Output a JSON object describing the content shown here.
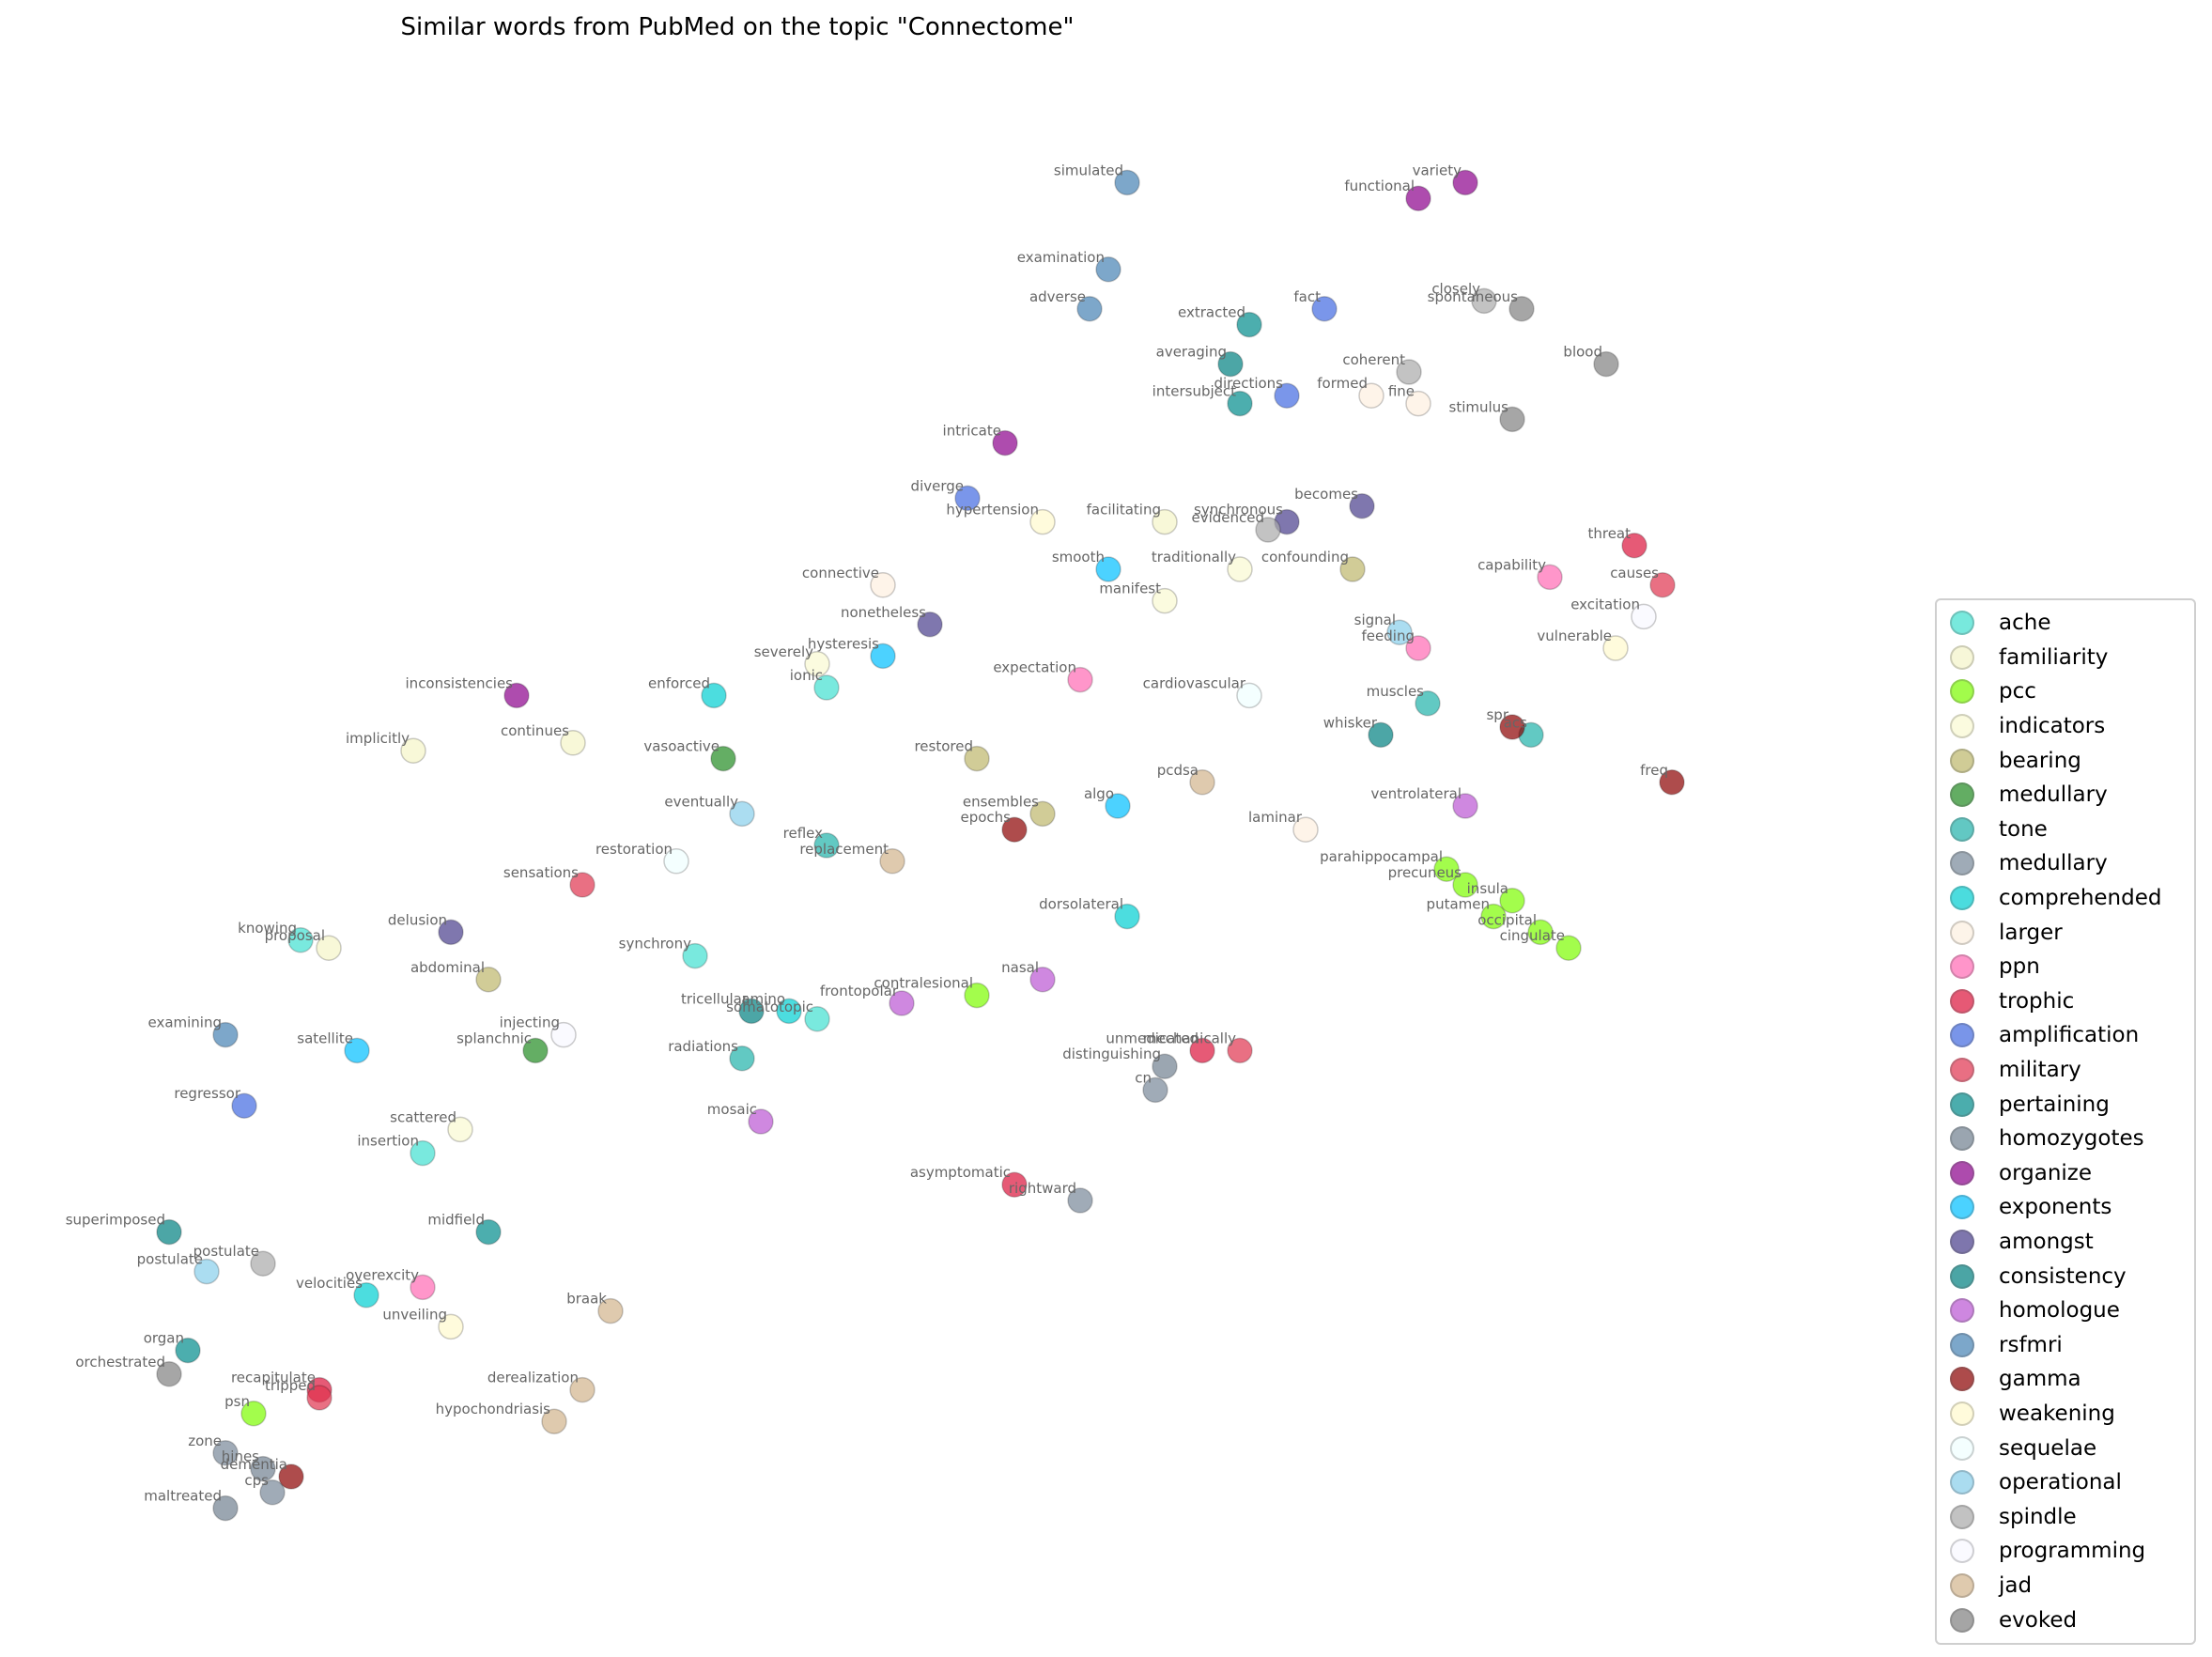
{
  "chart_data": {
    "type": "scatter",
    "title": "Similar words from PubMed on the topic \"Connectome\"",
    "xlabel": "",
    "ylabel": "",
    "axes_visible": false,
    "xlim": [
      0,
      100
    ],
    "ylim": [
      0,
      100
    ],
    "legend_position": "right",
    "series": [
      {
        "name": "ache",
        "color": "#40e0d0",
        "points": [
          {
            "x": 35.0,
            "y": 43.0,
            "label": "synchrony"
          },
          {
            "x": 20.5,
            "y": 30.5,
            "label": "insertion"
          },
          {
            "x": 41.5,
            "y": 39.0,
            "label": "somatotopic"
          },
          {
            "x": 14.0,
            "y": 44.0,
            "label": "knowing"
          },
          {
            "x": 42.0,
            "y": 60.0,
            "label": "ionic"
          }
        ]
      },
      {
        "name": "familiarity",
        "color": "#f5f5c8",
        "points": [
          {
            "x": 20.0,
            "y": 56.0,
            "label": "implicitly"
          },
          {
            "x": 15.5,
            "y": 43.5,
            "label": "proposal"
          },
          {
            "x": 60.0,
            "y": 70.5,
            "label": "facilitating"
          },
          {
            "x": 28.5,
            "y": 56.5,
            "label": "continues"
          }
        ]
      },
      {
        "name": "pcc",
        "color": "#7cfc00",
        "points": [
          {
            "x": 76.0,
            "y": 47.5,
            "label": "precuneus"
          },
          {
            "x": 78.5,
            "y": 46.5,
            "label": "insula"
          },
          {
            "x": 81.5,
            "y": 43.5,
            "label": "cingulate"
          },
          {
            "x": 80.0,
            "y": 44.5,
            "label": "occipital"
          },
          {
            "x": 77.5,
            "y": 45.5,
            "label": "putamen"
          },
          {
            "x": 75.0,
            "y": 48.5,
            "label": "parahippocampal"
          },
          {
            "x": 50.0,
            "y": 40.5,
            "label": "contralesional"
          },
          {
            "x": 11.5,
            "y": 14.0,
            "label": "psn"
          }
        ]
      },
      {
        "name": "indicators",
        "color": "#fafad2",
        "points": [
          {
            "x": 60.0,
            "y": 65.5,
            "label": "manifest"
          },
          {
            "x": 64.0,
            "y": 67.5,
            "label": "traditionally"
          },
          {
            "x": 41.5,
            "y": 61.5,
            "label": "severely"
          },
          {
            "x": 22.5,
            "y": 32.0,
            "label": "scattered"
          }
        ]
      },
      {
        "name": "bearing",
        "color": "#bdb76b",
        "points": [
          {
            "x": 70.0,
            "y": 67.5,
            "label": "confounding"
          },
          {
            "x": 53.5,
            "y": 52.0,
            "label": "ensembles"
          },
          {
            "x": 50.0,
            "y": 55.5,
            "label": "restored"
          },
          {
            "x": 24.0,
            "y": 41.5,
            "label": "abdominal"
          }
        ]
      },
      {
        "name": "medullary",
        "color": "#228b22",
        "points": [
          {
            "x": 26.5,
            "y": 37.0,
            "label": "splanchnic"
          },
          {
            "x": 36.5,
            "y": 55.5,
            "label": "vasoactive"
          }
        ]
      },
      {
        "name": "tone",
        "color": "#20b2aa",
        "points": [
          {
            "x": 79.5,
            "y": 57.0,
            "label": "acs"
          },
          {
            "x": 74.0,
            "y": 59.0,
            "label": "muscles"
          },
          {
            "x": 42.0,
            "y": 50.0,
            "label": "reflex"
          },
          {
            "x": 37.5,
            "y": 36.5,
            "label": "radiations"
          }
        ]
      },
      {
        "name": "medullary",
        "color": "#778899",
        "points": [
          {
            "x": 59.5,
            "y": 34.5,
            "label": "cn"
          },
          {
            "x": 55.5,
            "y": 27.5,
            "label": "rightward"
          },
          {
            "x": 10.0,
            "y": 11.5,
            "label": "zone"
          },
          {
            "x": 12.5,
            "y": 9.0,
            "label": "cps"
          }
        ]
      },
      {
        "name": "comprehended",
        "color": "#00ced1",
        "points": [
          {
            "x": 36.0,
            "y": 59.5,
            "label": "enforced"
          },
          {
            "x": 40.0,
            "y": 39.5,
            "label": "amino"
          },
          {
            "x": 58.0,
            "y": 45.5,
            "label": "dorsolateral"
          },
          {
            "x": 17.5,
            "y": 21.5,
            "label": "velocities"
          }
        ]
      },
      {
        "name": "larger",
        "color": "#fdf0e0",
        "points": [
          {
            "x": 71.0,
            "y": 78.5,
            "label": "formed"
          },
          {
            "x": 73.5,
            "y": 78.0,
            "label": "fine"
          },
          {
            "x": 45.0,
            "y": 66.5,
            "label": "connective"
          },
          {
            "x": 67.5,
            "y": 51.0,
            "label": "laminar"
          }
        ]
      },
      {
        "name": "ppn",
        "color": "#ff69b4",
        "points": [
          {
            "x": 55.5,
            "y": 60.5,
            "label": "expectation"
          },
          {
            "x": 80.5,
            "y": 67.0,
            "label": "capability"
          },
          {
            "x": 73.5,
            "y": 62.5,
            "label": "feeding"
          },
          {
            "x": 20.5,
            "y": 22.0,
            "label": "overexcity"
          }
        ]
      },
      {
        "name": "trophic",
        "color": "#dc143c",
        "points": [
          {
            "x": 62.0,
            "y": 37.0,
            "label": "unmedicated"
          },
          {
            "x": 52.0,
            "y": 28.5,
            "label": "asymptomatic"
          },
          {
            "x": 85.0,
            "y": 69.0,
            "label": "threat"
          },
          {
            "x": 15.0,
            "y": 15.5,
            "label": "recapitulate"
          }
        ]
      },
      {
        "name": "amplification",
        "color": "#4169e1",
        "points": [
          {
            "x": 68.5,
            "y": 84.0,
            "label": "fact"
          },
          {
            "x": 66.5,
            "y": 78.5,
            "label": "directions"
          },
          {
            "x": 49.5,
            "y": 72.0,
            "label": "diverge"
          },
          {
            "x": 11.0,
            "y": 33.5,
            "label": "regressor"
          }
        ]
      },
      {
        "name": "military",
        "color": "#e0334f",
        "points": [
          {
            "x": 86.5,
            "y": 66.5,
            "label": "causes"
          },
          {
            "x": 29.0,
            "y": 47.5,
            "label": "sensations"
          },
          {
            "x": 64.0,
            "y": 37.0,
            "label": "mechanically"
          },
          {
            "x": 15.0,
            "y": 15.0,
            "label": "tripped"
          }
        ]
      },
      {
        "name": "pertaining",
        "color": "#008b8b",
        "points": [
          {
            "x": 64.5,
            "y": 83.0,
            "label": "extracted"
          },
          {
            "x": 64.0,
            "y": 78.0,
            "label": "intersubject"
          },
          {
            "x": 24.0,
            "y": 25.5,
            "label": "midfield"
          },
          {
            "x": 8.0,
            "y": 18.0,
            "label": "organ"
          }
        ]
      },
      {
        "name": "homozygotes",
        "color": "#708090",
        "points": [
          {
            "x": 60.0,
            "y": 36.0,
            "label": "distinguishing"
          },
          {
            "x": 10.0,
            "y": 8.0,
            "label": "maltreated"
          },
          {
            "x": 12.0,
            "y": 10.5,
            "label": "hines"
          }
        ]
      },
      {
        "name": "organize",
        "color": "#8b008b",
        "points": [
          {
            "x": 76.0,
            "y": 92.0,
            "label": "variety"
          },
          {
            "x": 73.5,
            "y": 91.0,
            "label": "functional"
          },
          {
            "x": 51.5,
            "y": 75.5,
            "label": "intricate"
          },
          {
            "x": 25.5,
            "y": 59.5,
            "label": "inconsistencies"
          }
        ]
      },
      {
        "name": "exponents",
        "color": "#00bfff",
        "points": [
          {
            "x": 57.0,
            "y": 67.5,
            "label": "smooth"
          },
          {
            "x": 45.0,
            "y": 62.0,
            "label": "hysteresis"
          },
          {
            "x": 17.0,
            "y": 37.0,
            "label": "satellite"
          },
          {
            "x": 57.5,
            "y": 52.5,
            "label": "algo"
          }
        ]
      },
      {
        "name": "amongst",
        "color": "#483d8b",
        "points": [
          {
            "x": 66.5,
            "y": 70.5,
            "label": "synchronous"
          },
          {
            "x": 70.5,
            "y": 71.5,
            "label": "becomes"
          },
          {
            "x": 47.5,
            "y": 64.0,
            "label": "nonetheless"
          },
          {
            "x": 22.0,
            "y": 44.5,
            "label": "delusion"
          }
        ]
      },
      {
        "name": "consistency",
        "color": "#008080",
        "points": [
          {
            "x": 63.5,
            "y": 80.5,
            "label": "averaging"
          },
          {
            "x": 71.5,
            "y": 57.0,
            "label": "whisker"
          },
          {
            "x": 38.0,
            "y": 39.5,
            "label": "tricellular"
          },
          {
            "x": 7.0,
            "y": 25.5,
            "label": "superimposed"
          }
        ]
      },
      {
        "name": "homologue",
        "color": "#ba55d3",
        "points": [
          {
            "x": 53.5,
            "y": 41.5,
            "label": "nasal"
          },
          {
            "x": 38.5,
            "y": 32.5,
            "label": "mosaic"
          },
          {
            "x": 76.0,
            "y": 52.5,
            "label": "ventrolateral"
          },
          {
            "x": 46.0,
            "y": 40.0,
            "label": "frontopolar"
          }
        ]
      },
      {
        "name": "rsfmri",
        "color": "#4682b4",
        "points": [
          {
            "x": 58.0,
            "y": 92.0,
            "label": "simulated"
          },
          {
            "x": 57.0,
            "y": 86.5,
            "label": "examination"
          },
          {
            "x": 56.0,
            "y": 84.0,
            "label": "adverse"
          },
          {
            "x": 10.0,
            "y": 38.0,
            "label": "examining"
          }
        ]
      },
      {
        "name": "gamma",
        "color": "#8b0000",
        "points": [
          {
            "x": 78.5,
            "y": 57.5,
            "label": "spr"
          },
          {
            "x": 52.0,
            "y": 51.0,
            "label": "epochs"
          },
          {
            "x": 87.0,
            "y": 54.0,
            "label": "freq"
          },
          {
            "x": 13.5,
            "y": 10.0,
            "label": "dementia"
          }
        ]
      },
      {
        "name": "weakening",
        "color": "#fffacd",
        "points": [
          {
            "x": 84.0,
            "y": 62.5,
            "label": "vulnerable"
          },
          {
            "x": 53.5,
            "y": 70.5,
            "label": "hypertension"
          },
          {
            "x": 22.0,
            "y": 19.5,
            "label": "unveiling"
          }
        ]
      },
      {
        "name": "sequelae",
        "color": "#f0ffff",
        "points": [
          {
            "x": 64.5,
            "y": 59.5,
            "label": "cardiovascular"
          },
          {
            "x": 34.0,
            "y": 49.0,
            "label": "restoration"
          }
        ]
      },
      {
        "name": "operational",
        "color": "#87ceeb",
        "points": [
          {
            "x": 72.5,
            "y": 63.5,
            "label": "signal"
          },
          {
            "x": 37.5,
            "y": 52.0,
            "label": "eventually"
          },
          {
            "x": 9.0,
            "y": 23.0,
            "label": "postulate"
          }
        ]
      },
      {
        "name": "spindle",
        "color": "#a9a9a9",
        "points": [
          {
            "x": 77.0,
            "y": 84.5,
            "label": "closely"
          },
          {
            "x": 73.0,
            "y": 80.0,
            "label": "coherent"
          },
          {
            "x": 12.0,
            "y": 23.5,
            "label": "postulate"
          },
          {
            "x": 65.5,
            "y": 70.0,
            "label": "evidenced"
          }
        ]
      },
      {
        "name": "programming",
        "color": "#f8f8ff",
        "points": [
          {
            "x": 28.0,
            "y": 38.0,
            "label": "injecting"
          },
          {
            "x": 85.5,
            "y": 64.5,
            "label": "excitation"
          }
        ]
      },
      {
        "name": "jad",
        "color": "#d2b48c",
        "points": [
          {
            "x": 30.5,
            "y": 20.5,
            "label": "braak"
          },
          {
            "x": 29.0,
            "y": 15.5,
            "label": "derealization"
          },
          {
            "x": 27.5,
            "y": 13.5,
            "label": "hypochondriasis"
          },
          {
            "x": 45.5,
            "y": 49.0,
            "label": "replacement"
          },
          {
            "x": 62.0,
            "y": 54.0,
            "label": "pcdsa"
          }
        ]
      },
      {
        "name": "evoked",
        "color": "#808080",
        "points": [
          {
            "x": 79.0,
            "y": 84.0,
            "label": "spontaneous"
          },
          {
            "x": 83.5,
            "y": 80.5,
            "label": "blood"
          },
          {
            "x": 78.5,
            "y": 77.0,
            "label": "stimulus"
          },
          {
            "x": 7.0,
            "y": 16.5,
            "label": "orchestrated"
          }
        ]
      }
    ]
  }
}
